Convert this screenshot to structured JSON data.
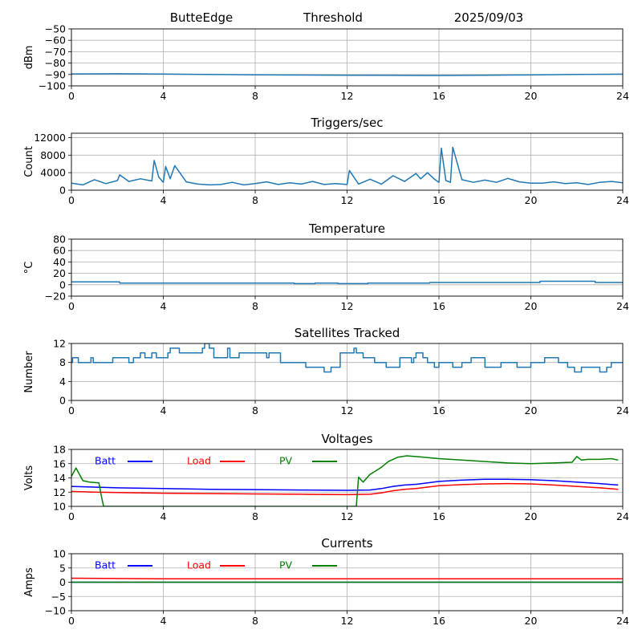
{
  "header": {
    "station": "ButteEdge",
    "mode": "Threshold",
    "date": "2025/09/03"
  },
  "chart_data": [
    {
      "id": "noise",
      "type": "line",
      "title": "",
      "ylabel": "dBm",
      "xlim": [
        0,
        24
      ],
      "ylim": [
        -100,
        -50
      ],
      "xticks": [
        0,
        4,
        8,
        12,
        16,
        20,
        24
      ],
      "yticks": [
        -100,
        -90,
        -80,
        -70,
        -60,
        -50
      ],
      "grid": true,
      "series": [
        {
          "color": "#1f77b4",
          "x": [
            0,
            2,
            4,
            6,
            8,
            10,
            12,
            14,
            16,
            18,
            20,
            22,
            24
          ],
          "y": [
            -89.5,
            -89.4,
            -89.6,
            -90.0,
            -90.3,
            -90.5,
            -90.6,
            -90.8,
            -90.9,
            -90.6,
            -90.4,
            -90.0,
            -89.7
          ]
        }
      ]
    },
    {
      "id": "triggers",
      "type": "line",
      "title": "Triggers/sec",
      "ylabel": "Count",
      "xlim": [
        0,
        24
      ],
      "ylim": [
        0,
        13000
      ],
      "xticks": [
        0,
        4,
        8,
        12,
        16,
        20,
        24
      ],
      "yticks": [
        0,
        4000,
        8000,
        12000
      ],
      "grid": true,
      "series": [
        {
          "color": "#1f77b4",
          "x": [
            0,
            0.5,
            1,
            1.5,
            2,
            2.1,
            2.5,
            3,
            3.5,
            3.6,
            3.8,
            4,
            4.1,
            4.3,
            4.5,
            5,
            5.5,
            6,
            6.5,
            7,
            7.5,
            8,
            8.5,
            9,
            9.5,
            10,
            10.5,
            11,
            11.5,
            12,
            12.1,
            12.5,
            13,
            13.5,
            14,
            14.5,
            15,
            15.2,
            15.5,
            15.8,
            16,
            16.1,
            16.3,
            16.5,
            16.6,
            17,
            17.5,
            18,
            18.5,
            19,
            19.5,
            20,
            20.5,
            21,
            21.5,
            22,
            22.5,
            23,
            23.5,
            24
          ],
          "y": [
            1600,
            1200,
            2400,
            1500,
            2200,
            3500,
            2000,
            2600,
            2100,
            6800,
            3000,
            1800,
            5400,
            2600,
            5600,
            1900,
            1400,
            1200,
            1300,
            1800,
            1200,
            1500,
            1900,
            1300,
            1700,
            1400,
            2000,
            1300,
            1500,
            1300,
            4500,
            1400,
            2500,
            1400,
            3300,
            2000,
            3800,
            2600,
            4000,
            2500,
            1800,
            9600,
            2200,
            1800,
            9800,
            2400,
            1800,
            2300,
            1800,
            2700,
            1900,
            1600,
            1600,
            1900,
            1500,
            1700,
            1300,
            1800,
            2000,
            1700
          ]
        }
      ]
    },
    {
      "id": "temperature",
      "type": "line",
      "title": "Temperature",
      "ylabel": "°C",
      "xlim": [
        0,
        24
      ],
      "ylim": [
        -20,
        80
      ],
      "xticks": [
        0,
        4,
        8,
        12,
        16,
        20,
        24
      ],
      "yticks": [
        -20,
        0,
        20,
        40,
        60,
        80
      ],
      "grid": true,
      "series": [
        {
          "color": "#1f77b4",
          "x": [
            0,
            2.1,
            2.1,
            9.7,
            9.7,
            10.6,
            10.6,
            11.6,
            11.6,
            12.9,
            12.9,
            15.6,
            15.6,
            20.4,
            20.4,
            22.8,
            22.8,
            24
          ],
          "y": [
            5,
            5,
            3,
            3,
            2,
            2,
            3,
            3,
            2,
            2,
            3,
            3,
            4,
            4,
            6,
            6,
            4,
            4
          ]
        }
      ]
    },
    {
      "id": "satellites",
      "type": "line",
      "title": "Satellites Tracked",
      "ylabel": "Number",
      "xlim": [
        0,
        24
      ],
      "ylim": [
        0,
        12
      ],
      "xticks": [
        0,
        4,
        8,
        12,
        16,
        20,
        24
      ],
      "yticks": [
        0,
        4,
        8,
        12
      ],
      "grid": true,
      "series": [
        {
          "color": "#1f77b4",
          "x": [
            0,
            0.05,
            0.05,
            0.3,
            0.3,
            0.85,
            0.85,
            0.95,
            0.95,
            1.8,
            1.8,
            2.5,
            2.5,
            2.7,
            2.7,
            3,
            3,
            3.2,
            3.2,
            3.5,
            3.5,
            3.7,
            3.7,
            4.2,
            4.2,
            4.3,
            4.3,
            4.7,
            4.7,
            5.7,
            5.7,
            5.8,
            5.8,
            6.0,
            6.0,
            6.2,
            6.2,
            6.8,
            6.8,
            6.9,
            6.9,
            7.3,
            7.3,
            8.5,
            8.5,
            8.6,
            8.6,
            9.1,
            9.1,
            10.2,
            10.2,
            11.0,
            11.0,
            11.3,
            11.3,
            11.7,
            11.7,
            12.3,
            12.3,
            12.4,
            12.4,
            12.7,
            12.7,
            13.2,
            13.2,
            13.7,
            13.7,
            14.3,
            14.3,
            14.8,
            14.8,
            14.9,
            14.9,
            15.0,
            15.0,
            15.3,
            15.3,
            15.5,
            15.5,
            15.8,
            15.8,
            16.0,
            16.0,
            16.6,
            16.6,
            17.0,
            17.0,
            17.4,
            17.4,
            18.0,
            18.0,
            18.7,
            18.7,
            19.4,
            19.4,
            20.0,
            20.0,
            20.6,
            20.6,
            21.2,
            21.2,
            21.6,
            21.6,
            21.9,
            21.9,
            22.2,
            22.2,
            22.6,
            22.6,
            23.0,
            23.0,
            23.3,
            23.3,
            23.5,
            23.5,
            24
          ],
          "y": [
            8,
            8,
            9,
            9,
            8,
            8,
            9,
            9,
            8,
            8,
            9,
            9,
            8,
            8,
            9,
            9,
            10,
            10,
            9,
            9,
            10,
            10,
            9,
            9,
            10,
            10,
            11,
            11,
            10,
            10,
            11,
            11,
            12,
            12,
            11,
            11,
            9,
            9,
            11,
            11,
            9,
            9,
            10,
            10,
            9,
            9,
            10,
            10,
            8,
            8,
            7,
            7,
            6,
            6,
            7,
            7,
            10,
            10,
            11,
            11,
            10,
            10,
            9,
            9,
            8,
            8,
            7,
            7,
            9,
            9,
            8,
            8,
            9,
            9,
            10,
            10,
            9,
            9,
            8,
            8,
            7,
            7,
            8,
            8,
            7,
            7,
            8,
            8,
            9,
            9,
            7,
            7,
            8,
            8,
            7,
            7,
            8,
            8,
            9,
            9,
            8,
            8,
            7,
            7,
            6,
            6,
            7,
            7,
            7,
            7,
            6,
            6,
            7,
            7,
            8,
            8
          ]
        }
      ]
    },
    {
      "id": "voltages",
      "type": "line",
      "title": "Voltages",
      "ylabel": "Volts",
      "xlim": [
        0,
        24
      ],
      "ylim": [
        10,
        18
      ],
      "xticks": [
        0,
        4,
        8,
        12,
        16,
        20,
        24
      ],
      "yticks": [
        10,
        12,
        14,
        16,
        18
      ],
      "grid": true,
      "legend_placement": "top-left",
      "series": [
        {
          "name": "Batt",
          "color": "#0000ff",
          "x": [
            0,
            1,
            2,
            4,
            6,
            8,
            10,
            12,
            13,
            13.5,
            14,
            14.5,
            15,
            15.5,
            16,
            17,
            18,
            19,
            20,
            21,
            22,
            23,
            23.8
          ],
          "y": [
            12.8,
            12.7,
            12.6,
            12.5,
            12.4,
            12.35,
            12.3,
            12.25,
            12.3,
            12.5,
            12.8,
            13.0,
            13.1,
            13.3,
            13.5,
            13.7,
            13.8,
            13.8,
            13.75,
            13.6,
            13.4,
            13.2,
            13.0
          ]
        },
        {
          "name": "Load",
          "color": "#ff0000",
          "x": [
            0,
            1,
            2,
            4,
            6,
            8,
            10,
            12,
            13,
            13.5,
            14,
            14.5,
            15,
            15.5,
            16,
            17,
            18,
            19,
            20,
            21,
            22,
            23,
            23.8
          ],
          "y": [
            12.1,
            12.0,
            11.95,
            11.85,
            11.8,
            11.75,
            11.7,
            11.65,
            11.7,
            11.9,
            12.2,
            12.4,
            12.5,
            12.7,
            12.9,
            13.05,
            13.15,
            13.2,
            13.15,
            13.0,
            12.8,
            12.6,
            12.4
          ]
        },
        {
          "name": "PV",
          "color": "#008000",
          "x": [
            0,
            0.2,
            0.5,
            0.8,
            1.2,
            1.3,
            1.4,
            12.4,
            12.5,
            12.7,
            13.0,
            13.5,
            13.8,
            14.2,
            14.6,
            15,
            16,
            17,
            18,
            19,
            20,
            21,
            21.8,
            22,
            22.2,
            22.5,
            23,
            23.5,
            23.8
          ],
          "y": [
            14.2,
            15.4,
            13.6,
            13.4,
            13.3,
            11.5,
            10,
            10,
            14.1,
            13.4,
            14.5,
            15.5,
            16.3,
            16.9,
            17.1,
            17.0,
            16.7,
            16.5,
            16.3,
            16.1,
            16.0,
            16.1,
            16.2,
            17.0,
            16.5,
            16.6,
            16.6,
            16.7,
            16.5
          ]
        }
      ]
    },
    {
      "id": "currents",
      "type": "line",
      "title": "Currents",
      "ylabel": "Amps",
      "xlim": [
        0,
        24
      ],
      "ylim": [
        -10,
        10
      ],
      "xticks": [
        0,
        4,
        8,
        12,
        16,
        20,
        24
      ],
      "yticks": [
        -10,
        -5,
        0,
        5,
        10
      ],
      "grid": true,
      "legend_placement": "top-left",
      "series": [
        {
          "name": "Batt",
          "color": "#0000ff",
          "x": [
            0,
            24
          ],
          "y": [
            0,
            0
          ]
        },
        {
          "name": "Load",
          "color": "#ff0000",
          "x": [
            0,
            2,
            4,
            8,
            12,
            16,
            20,
            24
          ],
          "y": [
            1.4,
            1.3,
            1.2,
            1.2,
            1.2,
            1.2,
            1.2,
            1.2
          ]
        },
        {
          "name": "PV",
          "color": "#008000",
          "x": [
            0,
            24
          ],
          "y": [
            0,
            0
          ]
        }
      ]
    }
  ]
}
